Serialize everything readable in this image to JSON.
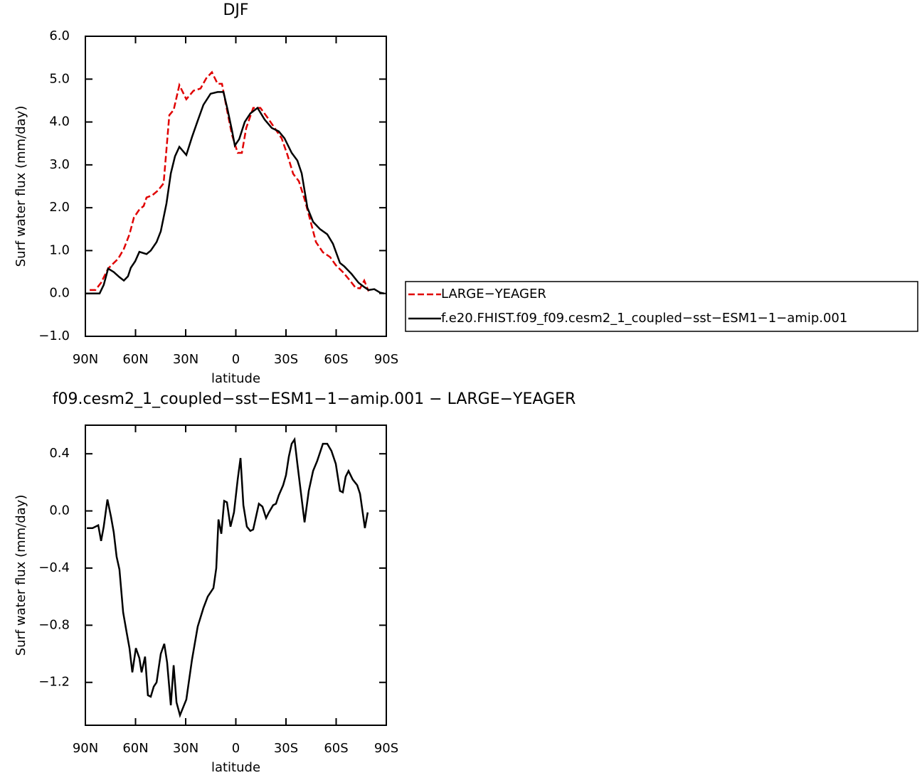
{
  "chart_data": [
    {
      "type": "line",
      "title": "DJF",
      "xlabel": "latitude",
      "ylabel": "Surf water flux (mm/day)",
      "xlim": [
        90,
        -90
      ],
      "xticks": [
        {
          "value": 90,
          "label": "90N"
        },
        {
          "value": 60,
          "label": "60N"
        },
        {
          "value": 30,
          "label": "30N"
        },
        0,
        {
          "value": -30,
          "label": "30S"
        },
        {
          "value": -60,
          "label": "60S"
        },
        {
          "value": -90,
          "label": "90S"
        }
      ],
      "ylim": [
        -1,
        6
      ],
      "yticks": [
        {
          "value": -1,
          "label": "−1.0"
        },
        {
          "value": 0,
          "label": "0.0"
        },
        {
          "value": 1,
          "label": "1.0"
        },
        {
          "value": 2,
          "label": "2.0"
        },
        {
          "value": 3,
          "label": "3.0"
        },
        {
          "value": 4,
          "label": "4.0"
        },
        {
          "value": 5,
          "label": "5.0"
        },
        {
          "value": 6,
          "label": "6.0"
        }
      ],
      "legend": "right",
      "series": [
        {
          "name": "LARGE−YEAGER",
          "color": "#e00000",
          "line_style": "dashed",
          "x": [
            87.4,
            84,
            80.6,
            76.4,
            73,
            70.4,
            67,
            63.6,
            61,
            57.7,
            55.1,
            53.4,
            50,
            46.6,
            43.2,
            39.8,
            37.2,
            33.8,
            29.6,
            25.3,
            21.1,
            17.7,
            14.3,
            10.9,
            8.3,
            4.9,
            2.3,
            -1.1,
            -3.6,
            -6.2,
            -10.4,
            -14.7,
            -19,
            -23.2,
            -27.4,
            -30.9,
            -34.3,
            -37.7,
            -41.1,
            -44.5,
            -47.9,
            -52.1,
            -56.4,
            -59.8,
            -64,
            -68.3,
            -71.7,
            -74.3,
            -76.8,
            -79.4
          ],
          "values": [
            0.08,
            0.08,
            0.25,
            0.58,
            0.71,
            0.81,
            1.04,
            1.38,
            1.77,
            1.96,
            2.04,
            2.24,
            2.29,
            2.4,
            2.57,
            4.16,
            4.28,
            4.86,
            4.53,
            4.73,
            4.78,
            5.02,
            5.16,
            4.89,
            4.89,
            4.2,
            3.7,
            3.28,
            3.28,
            3.86,
            4.33,
            4.33,
            4.1,
            3.86,
            3.62,
            3.23,
            2.79,
            2.62,
            2.2,
            1.71,
            1.2,
            0.96,
            0.85,
            0.66,
            0.5,
            0.3,
            0.13,
            0.12,
            0.3,
            0.05
          ]
        },
        {
          "name": "f.e20.FHIST.f09_f09.cesm2_1_coupled−sst−ESM1−1−amip.001",
          "color": "#000000",
          "line_style": "solid",
          "x": [
            90,
            81.5,
            79,
            76.4,
            73,
            69.6,
            67,
            64.5,
            62.8,
            60.2,
            57.7,
            53.4,
            50.9,
            47.4,
            44.9,
            41.5,
            38.9,
            36.4,
            33.8,
            29.6,
            26.2,
            22.8,
            19.4,
            15.1,
            10.9,
            7.4,
            4.9,
            2.3,
            0.6,
            -2,
            -5.3,
            -8.7,
            -13,
            -17.2,
            -21.5,
            -25.7,
            -29.1,
            -33.4,
            -36.8,
            -39.4,
            -42.8,
            -46.2,
            -50.4,
            -54.7,
            -58.1,
            -62.3,
            -64.9,
            -69.1,
            -73.4,
            -76.8,
            -79.4,
            -82.8,
            -86.2,
            -88.7
          ],
          "values": [
            0,
            0,
            0.2,
            0.58,
            0.5,
            0.38,
            0.3,
            0.4,
            0.6,
            0.75,
            0.97,
            0.92,
            1.0,
            1.2,
            1.45,
            2.1,
            2.8,
            3.2,
            3.42,
            3.23,
            3.65,
            4.03,
            4.4,
            4.66,
            4.7,
            4.7,
            4.28,
            3.8,
            3.45,
            3.6,
            4.0,
            4.2,
            4.33,
            4.06,
            3.86,
            3.78,
            3.62,
            3.28,
            3.1,
            2.8,
            2.0,
            1.67,
            1.5,
            1.38,
            1.16,
            0.71,
            0.63,
            0.46,
            0.25,
            0.15,
            0.08,
            0.1,
            0.02,
            0
          ]
        }
      ]
    },
    {
      "type": "line",
      "title": "f09.cesm2_1_coupled−sst−ESM1−1−amip.001 − LARGE−YEAGER",
      "xlabel": "latitude",
      "ylabel": "Surf water flux (mm/day)",
      "xlim": [
        90,
        -90
      ],
      "xticks": [
        {
          "value": 90,
          "label": "90N"
        },
        {
          "value": 60,
          "label": "60N"
        },
        {
          "value": 30,
          "label": "30N"
        },
        0,
        {
          "value": -30,
          "label": "30S"
        },
        {
          "value": -60,
          "label": "60S"
        },
        {
          "value": -90,
          "label": "90S"
        }
      ],
      "ylim": [
        -1.5,
        0.6
      ],
      "yticks": [
        {
          "value": -1.2,
          "label": "−1.2"
        },
        {
          "value": -0.8,
          "label": "−0.8"
        },
        {
          "value": -0.4,
          "label": "−0.4"
        },
        {
          "value": 0,
          "label": "0.0"
        },
        0.4
      ],
      "color": "#000000",
      "x": [
        89.1,
        85.7,
        82.3,
        80.6,
        79,
        76.8,
        74.7,
        73,
        71.3,
        69.6,
        67.4,
        65.3,
        63.6,
        61.9,
        59.8,
        57.7,
        56.4,
        54.3,
        52.6,
        50.9,
        49.1,
        47.4,
        44.9,
        42.8,
        41.1,
        38.9,
        37.2,
        35.5,
        33.4,
        29.6,
        26.2,
        22.8,
        19.4,
        16.8,
        13.4,
        11.7,
        10.4,
        8.7,
        7,
        5.3,
        3.2,
        1.1,
        -1.1,
        -2.8,
        -4.5,
        -6.6,
        -8.7,
        -10.4,
        -13.8,
        -15.9,
        -18.1,
        -19.8,
        -22.3,
        -24,
        -25.7,
        -28.3,
        -30,
        -31.7,
        -33.4,
        -35.1,
        -36.8,
        -41.1,
        -43.6,
        -46.2,
        -48.7,
        -52.1,
        -54.7,
        -57.2,
        -59.8,
        -62.3,
        -64,
        -65.7,
        -67.4,
        -69.9,
        -72.6,
        -74.3,
        -77.2,
        -78.9
      ],
      "values": [
        -0.12,
        -0.12,
        -0.1,
        -0.21,
        -0.11,
        0.08,
        -0.04,
        -0.15,
        -0.32,
        -0.41,
        -0.71,
        -0.85,
        -0.96,
        -1.13,
        -0.96,
        -1.03,
        -1.13,
        -1.02,
        -1.29,
        -1.3,
        -1.23,
        -1.2,
        -1.0,
        -0.93,
        -1.06,
        -1.36,
        -1.08,
        -1.34,
        -1.43,
        -1.32,
        -1.04,
        -0.81,
        -0.68,
        -0.6,
        -0.54,
        -0.4,
        -0.06,
        -0.16,
        0.07,
        0.06,
        -0.11,
        -0.01,
        0.22,
        0.37,
        0.04,
        -0.11,
        -0.14,
        -0.13,
        0.05,
        0.03,
        -0.05,
        -0.01,
        0.04,
        0.05,
        0.11,
        0.18,
        0.25,
        0.38,
        0.47,
        0.5,
        0.33,
        -0.08,
        0.14,
        0.28,
        0.35,
        0.47,
        0.47,
        0.42,
        0.33,
        0.14,
        0.13,
        0.24,
        0.28,
        0.22,
        0.18,
        0.12,
        -0.12,
        -0.01
      ]
    }
  ]
}
